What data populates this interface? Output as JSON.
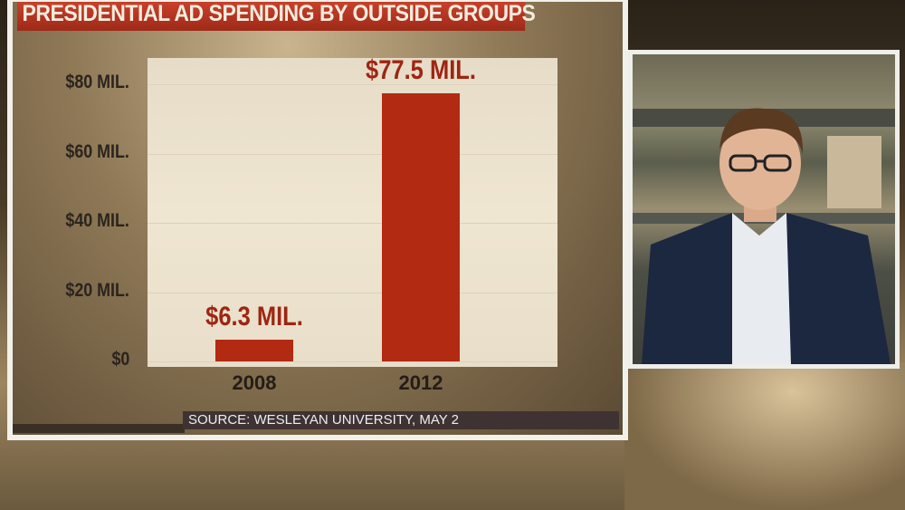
{
  "chart_data": {
    "type": "bar",
    "title": "PRESIDENTIAL AD SPENDING BY OUTSIDE GROUPS",
    "categories": [
      "2008",
      "2012"
    ],
    "values": [
      6.3,
      77.5
    ],
    "data_labels": [
      "$6.3 MIL.",
      "$77.5 MIL."
    ],
    "ytick_labels": [
      "$0",
      "$20 MIL.",
      "$40 MIL.",
      "$60 MIL.",
      "$80 MIL."
    ],
    "ytick_values": [
      0,
      20,
      40,
      60,
      80
    ],
    "ylim": [
      0,
      89
    ],
    "xlabel": "",
    "ylabel": "",
    "grid": true,
    "bar_color": "#b32a12",
    "source": "SOURCE: WESLEYAN UNIVERSITY, MAY 2"
  },
  "video": {
    "subject": "news-anchor"
  }
}
